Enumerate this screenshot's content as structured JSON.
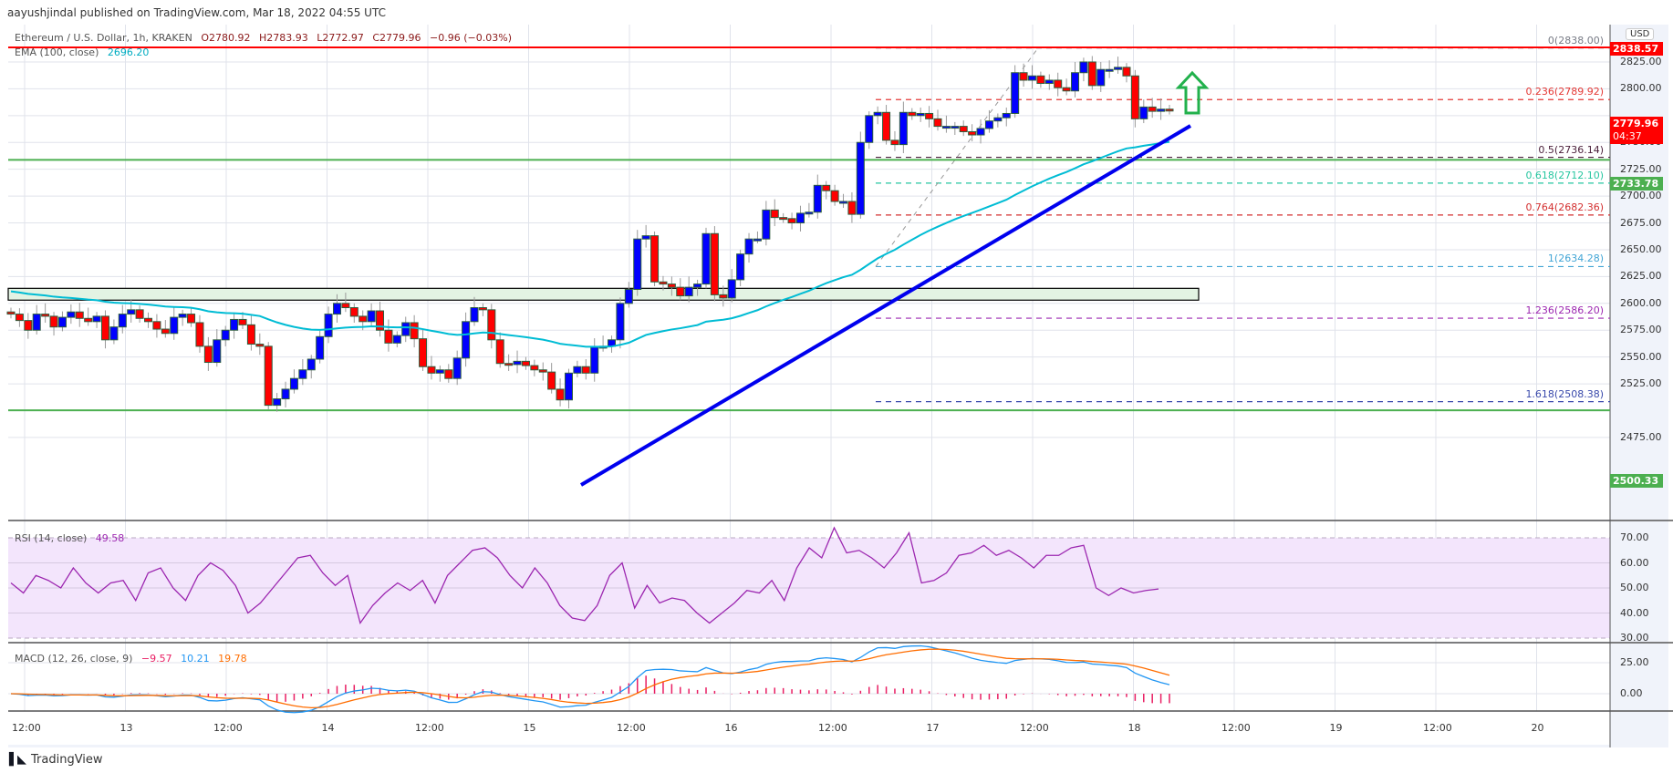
{
  "header": {
    "published": "aayushjindal published on TradingView.com, Mar 18, 2022 04:55 UTC"
  },
  "main_legend": {
    "symbol": "Ethereum / U.S. Dollar, 1h, KRAKEN",
    "open": "O2780.92",
    "high": "H2783.93",
    "low": "L2772.97",
    "close": "C2779.96",
    "change": "−0.96 (−0.03%)",
    "ema_label": "EMA (100, close)",
    "ema_value": "2696.20"
  },
  "rsi_legend": {
    "label": "RSI (14, close)",
    "value": "49.58"
  },
  "macd_legend": {
    "label": "MACD (12, 26, close, 9)",
    "hist": "−9.57",
    "macd": "10.21",
    "signal": "19.78"
  },
  "price_axis": {
    "currency": "USD",
    "ticks": [
      "2825.00",
      "2800.00",
      "2750.00",
      "2725.00",
      "2700.00",
      "2675.00",
      "2650.00",
      "2625.00",
      "2600.00",
      "2575.00",
      "2550.00",
      "2525.00",
      "2475.00"
    ],
    "tags": {
      "resistance": "2838.57",
      "last_price": "2779.96",
      "countdown": "04:37",
      "level_mid": "2733.78",
      "support": "2500.33"
    }
  },
  "rsi_axis": {
    "ticks": [
      "70.00",
      "60.00",
      "50.00",
      "40.00",
      "30.00"
    ]
  },
  "macd_axis": {
    "ticks": [
      "25.00",
      "0.00"
    ]
  },
  "time_axis": {
    "ticks": [
      "12:00",
      "13",
      "12:00",
      "14",
      "12:00",
      "15",
      "12:00",
      "16",
      "12:00",
      "17",
      "12:00",
      "18",
      "12:00",
      "19",
      "12:00",
      "20"
    ]
  },
  "fib_levels": [
    {
      "label": "0(2838.00)",
      "color": "#787b86"
    },
    {
      "label": "0.236(2789.92)",
      "color": "#e53935"
    },
    {
      "label": "0.5(2736.14)",
      "color": "#4a1f3a"
    },
    {
      "label": "0.618(2712.10)",
      "color": "#26c6a0"
    },
    {
      "label": "0.764(2682.36)",
      "color": "#d32f2f"
    },
    {
      "label": "1(2634.28)",
      "color": "#42a5d5"
    },
    {
      "label": "1.236(2586.20)",
      "color": "#9c27b0"
    },
    {
      "label": "1.618(2508.38)",
      "color": "#3949ab"
    }
  ],
  "footer": {
    "brand": "TradingView"
  },
  "colors": {
    "bull": "#0000ff",
    "bear": "#ff0000",
    "ema": "#00bcd4",
    "resistance_line": "#ff0000",
    "support_line": "#4caf50",
    "trendline": "#0000ee",
    "rsi": "#9c27b0",
    "macd": "#2196f3",
    "signal": "#ff6d00",
    "hist": "#e91e63",
    "arrow": "#22b14c"
  },
  "chart_data": {
    "type": "candlestick",
    "title": "Ethereum / U.S. Dollar, 1h, KRAKEN",
    "xlabel": "",
    "ylabel": "USD",
    "ylim": [
      2465,
      2850
    ],
    "x_ticks": [
      "12:00",
      "13",
      "12:00",
      "14",
      "12:00",
      "15",
      "12:00",
      "16",
      "12:00",
      "17",
      "12:00",
      "18",
      "12:00",
      "19",
      "12:00",
      "20"
    ],
    "horizontal_levels": {
      "resistance": 2838.57,
      "mid_support": 2733.78,
      "support": 2500.33,
      "support_zone": [
        2603,
        2614
      ]
    },
    "fibonacci": [
      {
        "ratio": 0,
        "price": 2838.0
      },
      {
        "ratio": 0.236,
        "price": 2789.92
      },
      {
        "ratio": 0.5,
        "price": 2736.14
      },
      {
        "ratio": 0.618,
        "price": 2712.1
      },
      {
        "ratio": 0.764,
        "price": 2682.36
      },
      {
        "ratio": 1,
        "price": 2634.28
      },
      {
        "ratio": 1.236,
        "price": 2586.2
      },
      {
        "ratio": 1.618,
        "price": 2508.38
      }
    ],
    "last": {
      "open": 2780.92,
      "high": 2783.93,
      "low": 2772.97,
      "close": 2779.96,
      "change": -0.96,
      "change_pct": -0.03
    },
    "ema100_last": 2696.2,
    "rsi_last": 49.58,
    "macd_last": {
      "hist": -9.57,
      "macd": 10.21,
      "signal": 19.78
    },
    "closes_approx": [
      2590,
      2584,
      2575,
      2590,
      2588,
      2578,
      2587,
      2592,
      2586,
      2583,
      2588,
      2566,
      2578,
      2590,
      2594,
      2586,
      2583,
      2576,
      2572,
      2587,
      2590,
      2582,
      2560,
      2545,
      2566,
      2575,
      2585,
      2580,
      2562,
      2560,
      2505,
      2511,
      2520,
      2530,
      2538,
      2548,
      2569,
      2590,
      2600,
      2596,
      2588,
      2583,
      2593,
      2575,
      2563,
      2570,
      2582,
      2567,
      2541,
      2535,
      2538,
      2530,
      2549,
      2583,
      2596,
      2594,
      2566,
      2544,
      2543,
      2546,
      2542,
      2538,
      2536,
      2520,
      2510,
      2535,
      2541,
      2535,
      2559,
      2560,
      2566,
      2600,
      2613,
      2660,
      2663,
      2620,
      2618,
      2615,
      2607,
      2615,
      2618,
      2665,
      2608,
      2605,
      2622,
      2646,
      2660,
      2660,
      2687,
      2680,
      2679,
      2675,
      2684,
      2685,
      2710,
      2705,
      2695,
      2695,
      2683,
      2750,
      2775,
      2778,
      2752,
      2748,
      2778,
      2775,
      2777,
      2772,
      2765,
      2765,
      2765,
      2760,
      2757,
      2763,
      2770,
      2773,
      2777,
      2815,
      2808,
      2812,
      2805,
      2808,
      2801,
      2798,
      2815,
      2825,
      2803,
      2818,
      2818,
      2820,
      2812,
      2772,
      2783,
      2779,
      2781,
      2780
    ],
    "rsi_approx": [
      52,
      48,
      55,
      53,
      50,
      58,
      52,
      48,
      52,
      53,
      45,
      56,
      58,
      50,
      45,
      55,
      60,
      57,
      51,
      40,
      44,
      50,
      56,
      62,
      63,
      56,
      51,
      55,
      36,
      43,
      48,
      52,
      49,
      53,
      44,
      55,
      60,
      65,
      66,
      62,
      55,
      50,
      58,
      52,
      43,
      38,
      37,
      43,
      55,
      60,
      42,
      51,
      44,
      46,
      45,
      40,
      36,
      40,
      44,
      49,
      48,
      53,
      45,
      58,
      66,
      62,
      74,
      64,
      65,
      62,
      58,
      64,
      72,
      52,
      53,
      56,
      63,
      64,
      67,
      63,
      65,
      62,
      58,
      63,
      63,
      66,
      67,
      50,
      47,
      50,
      48,
      49,
      49.58
    ]
  }
}
